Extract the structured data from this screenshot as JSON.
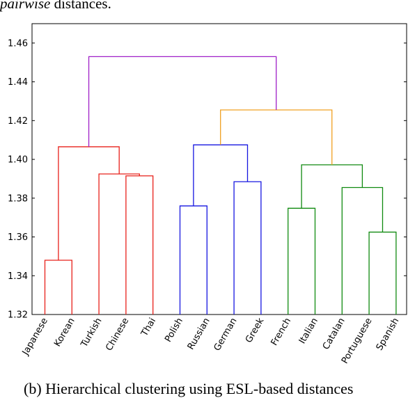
{
  "page": {
    "top_text_italic": "pairwise",
    "top_text_rest": " distances.",
    "bottom_text": "(b) Hierarchical clustering using ESL-based distances"
  },
  "chart_data": {
    "type": "dendrogram",
    "ylim": [
      1.32,
      1.47
    ],
    "yticks": [
      1.32,
      1.34,
      1.36,
      1.38,
      1.4,
      1.42,
      1.44,
      1.46
    ],
    "ytick_labels": [
      "1.32",
      "1.34",
      "1.36",
      "1.38",
      "1.40",
      "1.42",
      "1.44",
      "1.46"
    ],
    "leaves": [
      "Japanese",
      "Korean",
      "Turkish",
      "Chinese",
      "Thai",
      "Polish",
      "Russian",
      "German",
      "Greek",
      "French",
      "Italian",
      "Catalan",
      "Portuguese",
      "Spanish"
    ],
    "colors": {
      "red": "#e8201a",
      "blue": "#1515e0",
      "green": "#108a10",
      "orange": "#f0a020",
      "purple": "#a020c8"
    },
    "links": [
      {
        "left": 0,
        "right": 1,
        "height": 1.348,
        "color": "red"
      },
      {
        "left": 3,
        "right": 4,
        "height": 1.3915,
        "color": "red"
      },
      {
        "left": 2,
        "right": "c1",
        "height": 1.3925,
        "color": "red"
      },
      {
        "left": "c0",
        "right": "c2",
        "height": 1.4065,
        "color": "red"
      },
      {
        "left": 5,
        "right": 6,
        "height": 1.376,
        "color": "blue"
      },
      {
        "left": 7,
        "right": 8,
        "height": 1.3885,
        "color": "blue"
      },
      {
        "left": "c4",
        "right": "c5",
        "height": 1.4075,
        "color": "blue"
      },
      {
        "left": 9,
        "right": 10,
        "height": 1.3748,
        "color": "green"
      },
      {
        "left": 12,
        "right": 13,
        "height": 1.3625,
        "color": "green"
      },
      {
        "left": 11,
        "right": "c8",
        "height": 1.3855,
        "color": "green"
      },
      {
        "left": "c7",
        "right": "c9",
        "height": 1.3972,
        "color": "green"
      },
      {
        "left": "c6",
        "right": "c10",
        "height": 1.4255,
        "color": "orange"
      },
      {
        "left": "c3",
        "right": "c11",
        "height": 1.453,
        "color": "purple"
      }
    ]
  }
}
